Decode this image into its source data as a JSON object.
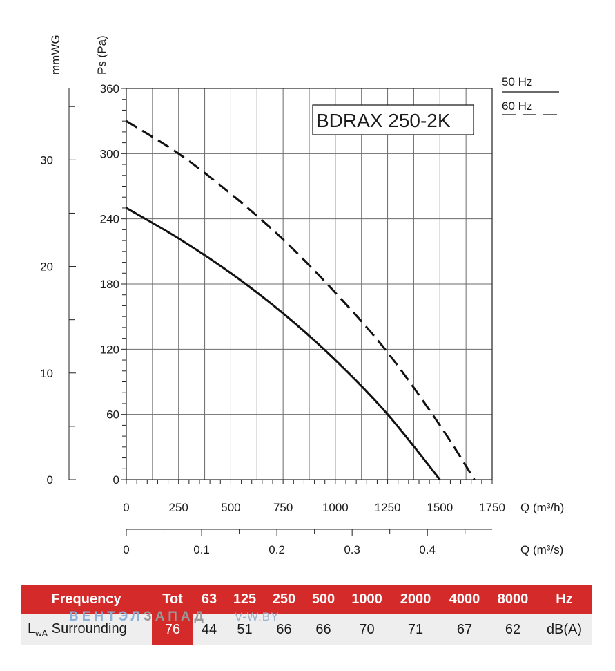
{
  "chart_data": {
    "type": "line",
    "title": "BDRAX 250-2K",
    "x": {
      "label": "Q (m³/h)",
      "range": [
        0,
        1750
      ],
      "ticks": [
        "0",
        "250",
        "500",
        "750",
        "1000",
        "1250",
        "1500",
        "1750"
      ]
    },
    "x2": {
      "label": "Q (m³/s)",
      "range": [
        0,
        0.486
      ],
      "ticks": [
        {
          "value": 0,
          "label": "0"
        },
        {
          "value": 0.1,
          "label": "0.1"
        },
        {
          "value": 0.2,
          "label": "0.2"
        },
        {
          "value": 0.3,
          "label": "0.3"
        },
        {
          "value": 0.4,
          "label": "0.4"
        }
      ]
    },
    "y": {
      "label": "Ps (Pa)",
      "range": [
        0,
        360
      ],
      "ticks": [
        "0",
        "60",
        "120",
        "180",
        "240",
        "300",
        "360"
      ]
    },
    "y2": {
      "label": "mmWG",
      "range": [
        0,
        36.7
      ],
      "ticks": [
        {
          "value": 0,
          "label": "0"
        },
        {
          "value": 10,
          "label": "10"
        },
        {
          "value": 20,
          "label": "20"
        },
        {
          "value": 30,
          "label": "30"
        }
      ]
    },
    "grid": true,
    "legend_position": "top-right, outside plot",
    "series": [
      {
        "name": "50 Hz",
        "style": "solid",
        "points": [
          [
            0,
            250
          ],
          [
            250,
            222
          ],
          [
            500,
            190
          ],
          [
            750,
            153
          ],
          [
            1000,
            110
          ],
          [
            1250,
            60
          ],
          [
            1500,
            0
          ]
        ]
      },
      {
        "name": "60 Hz",
        "style": "dashed",
        "points": [
          [
            0,
            330
          ],
          [
            250,
            300
          ],
          [
            500,
            263
          ],
          [
            750,
            221
          ],
          [
            1000,
            172
          ],
          [
            1250,
            117
          ],
          [
            1500,
            50
          ],
          [
            1665,
            0
          ]
        ]
      }
    ]
  },
  "sound_table": {
    "header": [
      "Frequency",
      "Tot",
      "63",
      "125",
      "250",
      "500",
      "1000",
      "2000",
      "4000",
      "8000",
      "Hz"
    ],
    "row_label_main": "L",
    "row_label_sub": "wA",
    "row_label_rest": " Surrounding",
    "values": [
      "76",
      "44",
      "51",
      "66",
      "66",
      "70",
      "71",
      "67",
      "62"
    ],
    "unit": "dB(A)"
  },
  "watermark": {
    "part1": "ВЕНТЭЛ",
    "part2": "ЗАПАД",
    "part3": "V-W.BY"
  }
}
